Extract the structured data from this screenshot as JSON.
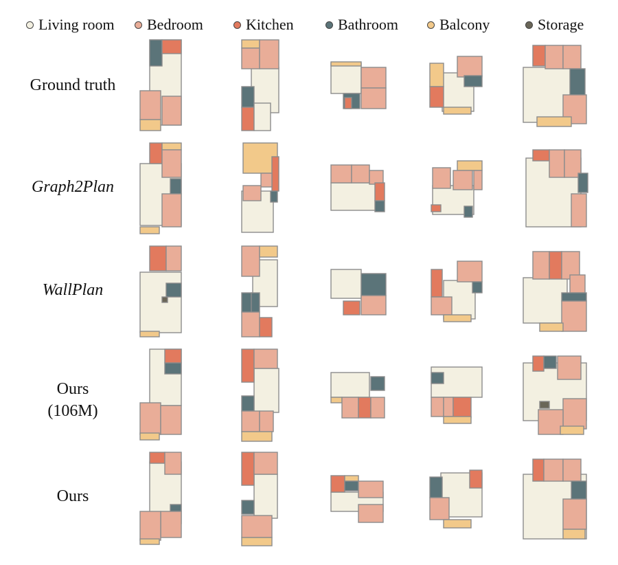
{
  "legend": [
    {
      "label": "Living room",
      "color": "#f3f0e1"
    },
    {
      "label": "Bedroom",
      "color": "#e9ad98"
    },
    {
      "label": "Kitchen",
      "color": "#e27a5e"
    },
    {
      "label": "Bathroom",
      "color": "#5b7479"
    },
    {
      "label": "Balcony",
      "color": "#f2c98a"
    },
    {
      "label": "Storage",
      "color": "#6a6658"
    }
  ],
  "rows": [
    {
      "label": "Ground truth"
    },
    {
      "label": "Graph2Plan"
    },
    {
      "label": "WallPlan"
    },
    {
      "label": [
        "Ours",
        "(106M)"
      ]
    },
    {
      "label": "Ours"
    }
  ],
  "colors": {
    "living": "#f3f0e1",
    "bedroom": "#e9ad98",
    "kitchen": "#e27a5e",
    "bathroom": "#5b7479",
    "balcony": "#f2c98a",
    "storage": "#6a6658",
    "wall": "#8c8c8c"
  }
}
